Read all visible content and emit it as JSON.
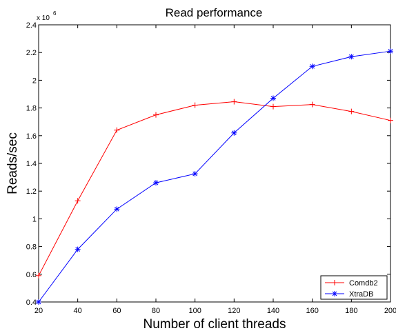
{
  "chart_data": {
    "type": "line",
    "title": "Read performance",
    "xlabel": "Number of client threads",
    "ylabel": "Reads/sec",
    "y_multiplier_label": "x 10",
    "y_multiplier_exponent": "6",
    "x": [
      20,
      40,
      60,
      80,
      100,
      120,
      140,
      160,
      180,
      200
    ],
    "xlim": [
      20,
      200
    ],
    "ylim": [
      0.4,
      2.4
    ],
    "x_ticks": [
      20,
      40,
      60,
      80,
      100,
      120,
      140,
      160,
      180,
      200
    ],
    "x_tick_labels": [
      "20",
      "40",
      "60",
      "80",
      "100",
      "120",
      "140",
      "160",
      "180",
      "200"
    ],
    "y_ticks": [
      0.4,
      0.6,
      0.8,
      1.0,
      1.2,
      1.4,
      1.6,
      1.8,
      2.0,
      2.2,
      2.4
    ],
    "y_tick_labels": [
      "0.4",
      "0.6",
      "0.8",
      "1",
      "1.2",
      "1.4",
      "1.6",
      "1.8",
      "2",
      "2.2",
      "2.4"
    ],
    "grid": false,
    "legend_position": "bottom-right",
    "series": [
      {
        "name": "Comdb2",
        "color": "#ff0000",
        "marker": "plus",
        "values": [
          0.59,
          1.13,
          1.64,
          1.75,
          1.82,
          1.845,
          1.81,
          1.825,
          1.775,
          1.71
        ]
      },
      {
        "name": "XtraDB",
        "color": "#0000ff",
        "marker": "star",
        "values": [
          0.4,
          0.78,
          1.07,
          1.26,
          1.325,
          1.62,
          1.87,
          2.1,
          2.17,
          2.21
        ]
      }
    ]
  }
}
